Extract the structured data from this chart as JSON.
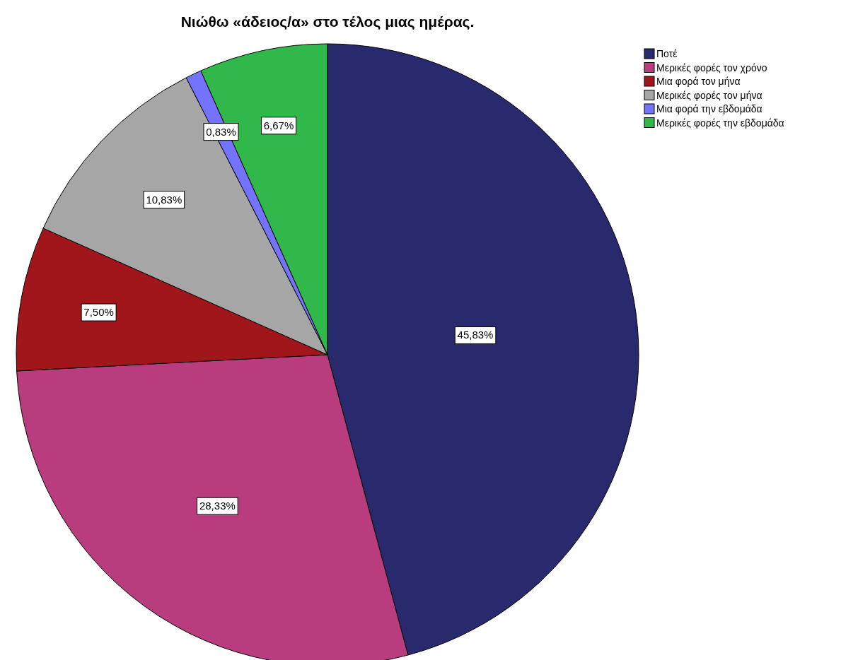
{
  "chart_data": {
    "type": "pie",
    "title": "Νιώθω «άδειος/α» στο τέλος μιας ημέρας.",
    "categories": [
      "Ποτέ",
      "Μερικές φορές τον χρόνο",
      "Μια φορά τον μήνα",
      "Μερικές φορές τον μήνα",
      "Μια φορά την εβδομάδα",
      "Μερικές φορές την εβδομάδα"
    ],
    "values": [
      45.83,
      28.33,
      7.5,
      10.83,
      0.83,
      6.67
    ],
    "value_labels": [
      "45,83%",
      "28,33%",
      "7,50%",
      "10,83%",
      "0,83%",
      "6,67%"
    ],
    "colors": [
      "#29296e",
      "#b93d7e",
      "#a0161b",
      "#a6a6a6",
      "#7373ff",
      "#31b84b"
    ],
    "legend": "top right"
  }
}
